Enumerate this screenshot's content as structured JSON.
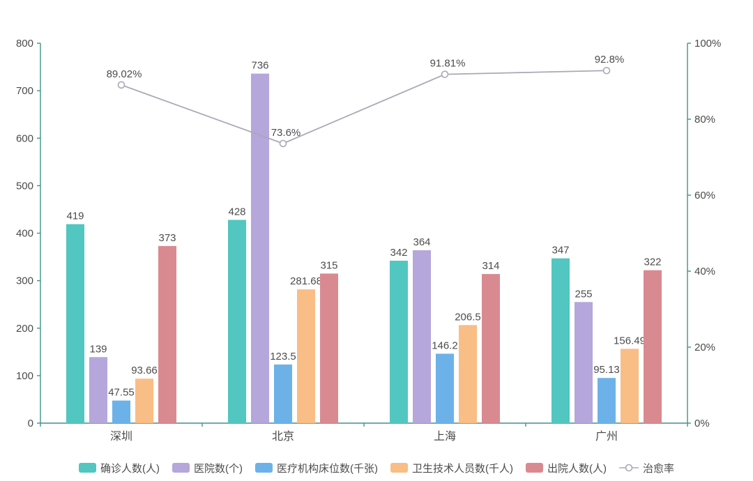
{
  "page": {
    "background": "#ffffff"
  },
  "chart_data": {
    "type": "bar",
    "subtype": "grouped-bars-with-line-dual-axis",
    "title": "",
    "categories": [
      "深圳",
      "北京",
      "上海",
      "广州"
    ],
    "series": [
      {
        "name": "确诊人数(人)",
        "type": "bar",
        "color": "#52c6c0",
        "values": [
          419,
          428,
          342,
          347
        ]
      },
      {
        "name": "医院数(个)",
        "type": "bar",
        "color": "#b5a6db",
        "values": [
          139,
          736,
          364,
          255
        ]
      },
      {
        "name": "医疗机构床位数(千张)",
        "type": "bar",
        "color": "#6cb2e9",
        "values": [
          47.55,
          123.5,
          146.2,
          95.13
        ]
      },
      {
        "name": "卫生技术人员数(千人)",
        "type": "bar",
        "color": "#f9bd86",
        "values": [
          93.66,
          281.68,
          206.5,
          156.49
        ]
      },
      {
        "name": "出院人数(人)",
        "type": "bar",
        "color": "#d98a90",
        "values": [
          373,
          315,
          314,
          322
        ]
      }
    ],
    "line": {
      "name": "治愈率",
      "type": "line",
      "color": "#a9a9b5",
      "axis": "right",
      "values": [
        89.02,
        73.6,
        91.81,
        92.8
      ],
      "labels": [
        "89.02%",
        "73.6%",
        "91.81%",
        "92.8%"
      ]
    },
    "left_axis": {
      "min": 0,
      "max": 800,
      "step": 100,
      "ticks": [
        "0",
        "100",
        "200",
        "300",
        "400",
        "500",
        "600",
        "700",
        "800"
      ]
    },
    "right_axis": {
      "min": 0,
      "max": 100,
      "step": 20,
      "ticks": [
        "0%",
        "20%",
        "40%",
        "60%",
        "80%",
        "100%"
      ]
    },
    "grid": false,
    "legend_position": "bottom",
    "colors": {
      "axis_line": "#3f9488",
      "tick_label": "#4a4a4a",
      "value_label": "#4c4c4c",
      "background": "#ffffff"
    }
  }
}
